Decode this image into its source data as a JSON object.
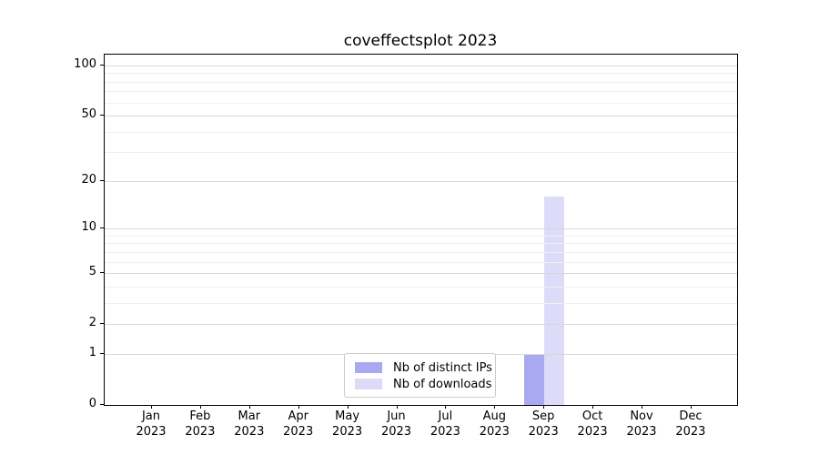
{
  "title": "coveffectsplot 2023",
  "colors": {
    "series_distinct_ips": "#a9a9f2",
    "series_downloads": "#dcdcf8",
    "grid_major": "#d8d8d8",
    "grid_minor": "#f0f0f0",
    "axis": "#000000",
    "legend_border": "#cccccc",
    "background": "#ffffff"
  },
  "chart_data": {
    "type": "bar",
    "title": "coveffectsplot 2023",
    "categories": [
      "Jan",
      "Feb",
      "Mar",
      "Apr",
      "May",
      "Jun",
      "Jul",
      "Aug",
      "Sep",
      "Oct",
      "Nov",
      "Dec"
    ],
    "category_year": "2023",
    "series": [
      {
        "name": "Nb of distinct IPs",
        "color": "#a9a9f2",
        "values": [
          0,
          0,
          0,
          0,
          0,
          0,
          0,
          0,
          1,
          0,
          0,
          0
        ]
      },
      {
        "name": "Nb of downloads",
        "color": "#dcdcf8",
        "values": [
          0,
          0,
          0,
          0,
          0,
          0,
          0,
          0,
          16,
          0,
          0,
          0
        ]
      }
    ],
    "xlabel": "",
    "ylabel": "",
    "yscale": "log1p",
    "yticks": [
      0,
      1,
      2,
      5,
      10,
      20,
      50,
      100
    ],
    "yticks_minor": [
      3,
      4,
      6,
      7,
      8,
      9,
      30,
      40,
      60,
      70,
      80,
      90
    ],
    "ylim": [
      0,
      116
    ],
    "grid": true,
    "legend_position": "lower center"
  }
}
